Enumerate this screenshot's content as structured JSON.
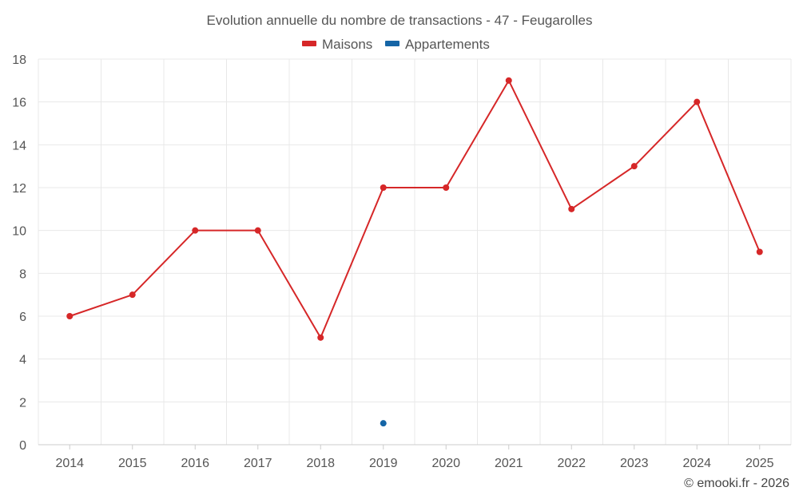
{
  "chart_data": {
    "type": "line",
    "title": "Evolution annuelle du nombre de transactions - 47 - Feugarolles",
    "categories": [
      "2014",
      "2015",
      "2016",
      "2017",
      "2018",
      "2019",
      "2020",
      "2021",
      "2022",
      "2023",
      "2024",
      "2025"
    ],
    "series": [
      {
        "name": "Maisons",
        "color": "#d62728",
        "values": [
          6,
          7,
          10,
          10,
          5,
          12,
          12,
          17,
          11,
          13,
          16,
          9
        ]
      },
      {
        "name": "Appartements",
        "color": "#1565a6",
        "values": [
          null,
          null,
          null,
          null,
          null,
          1,
          null,
          null,
          null,
          null,
          null,
          null
        ]
      }
    ],
    "ylim": [
      0,
      18
    ],
    "yticks": [
      0,
      2,
      4,
      6,
      8,
      10,
      12,
      14,
      16,
      18
    ],
    "xlabel": "",
    "ylabel": "",
    "grid": true,
    "legend_position": "top-center"
  },
  "credit": "© emooki.fr - 2026"
}
